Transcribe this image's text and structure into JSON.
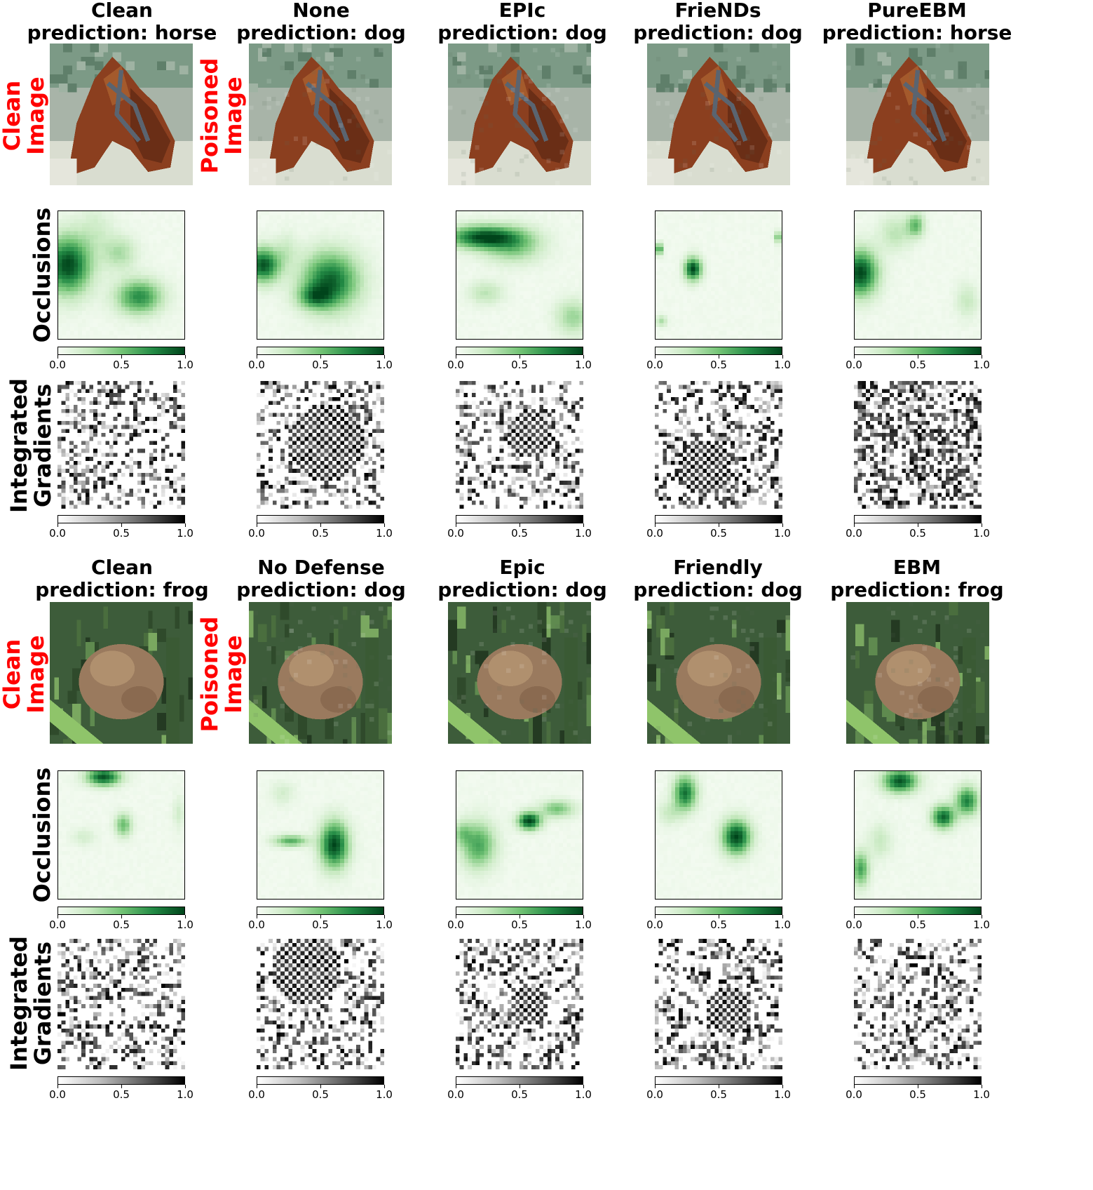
{
  "panels": [
    {
      "columns": [
        {
          "title_line1": "Clean",
          "title_line2": "prediction: horse"
        },
        {
          "title_line1": "None",
          "title_line2": "prediction: dog"
        },
        {
          "title_line1": "EPIc",
          "title_line2": "prediction: dog"
        },
        {
          "title_line1": "FrieNDs",
          "title_line2": "prediction: dog"
        },
        {
          "title_line1": "PureEBM",
          "title_line2": "prediction: horse"
        }
      ],
      "image_subject": "horse",
      "side_labels": {
        "clean": "Clean\nImage",
        "poisoned": "Poisoned\nImage"
      },
      "row_labels": {
        "occlusions": "Occlusions",
        "ig": "Integrated\nGradients"
      }
    },
    {
      "columns": [
        {
          "title_line1": "Clean",
          "title_line2": "prediction: frog"
        },
        {
          "title_line1": "No Defense",
          "title_line2": "prediction: dog"
        },
        {
          "title_line1": "Epic",
          "title_line2": "prediction: dog"
        },
        {
          "title_line1": "Friendly",
          "title_line2": "prediction: dog"
        },
        {
          "title_line1": "EBM",
          "title_line2": "prediction: frog"
        }
      ],
      "image_subject": "frog",
      "side_labels": {
        "clean": "Clean\nImage",
        "poisoned": "Poisoned\nImage"
      },
      "row_labels": {
        "occlusions": "Occlusions",
        "ig": "Integrated\nGradients"
      }
    }
  ],
  "colorbar": {
    "ticks": [
      "0.0",
      "0.5",
      "1.0"
    ],
    "occlusion_cmap": "Greens",
    "ig_cmap": "Greys"
  },
  "colors": {
    "side_label": "#ff0000",
    "green_dark": "#00441b",
    "green_light": "#f7fcf5"
  }
}
